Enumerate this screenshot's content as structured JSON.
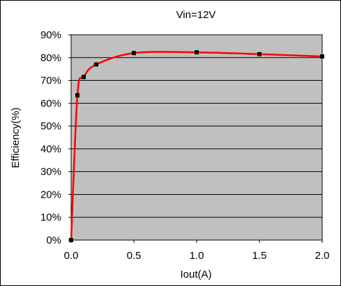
{
  "chart_data": {
    "type": "line",
    "title": "Vin=12V",
    "xlabel": "Iout(A)",
    "ylabel": "Efficiency(%)",
    "xlim": [
      0.0,
      2.0
    ],
    "ylim": [
      0,
      90
    ],
    "x_ticks": [
      "0.0",
      "0.5",
      "1.0",
      "1.5",
      "2.0"
    ],
    "x_tick_values": [
      0.0,
      0.5,
      1.0,
      1.5,
      2.0
    ],
    "y_ticks": [
      "0%",
      "10%",
      "20%",
      "30%",
      "40%",
      "50%",
      "60%",
      "70%",
      "80%",
      "90%"
    ],
    "y_tick_values": [
      0,
      10,
      20,
      30,
      40,
      50,
      60,
      70,
      80,
      90
    ],
    "grid": "horizontal",
    "series": [
      {
        "x": [
          0.0,
          0.05,
          0.1,
          0.2,
          0.5,
          1.0,
          1.5,
          2.0
        ],
        "y": [
          0,
          63.5,
          71.5,
          77.0,
          82.0,
          82.3,
          81.5,
          80.5
        ],
        "color": "#ff0000",
        "marker_color": "#000000"
      }
    ],
    "colors": {
      "plot_background": "#c0c0c0",
      "gridline": "#000000",
      "line": "#ff0000",
      "marker": "#000000"
    }
  }
}
